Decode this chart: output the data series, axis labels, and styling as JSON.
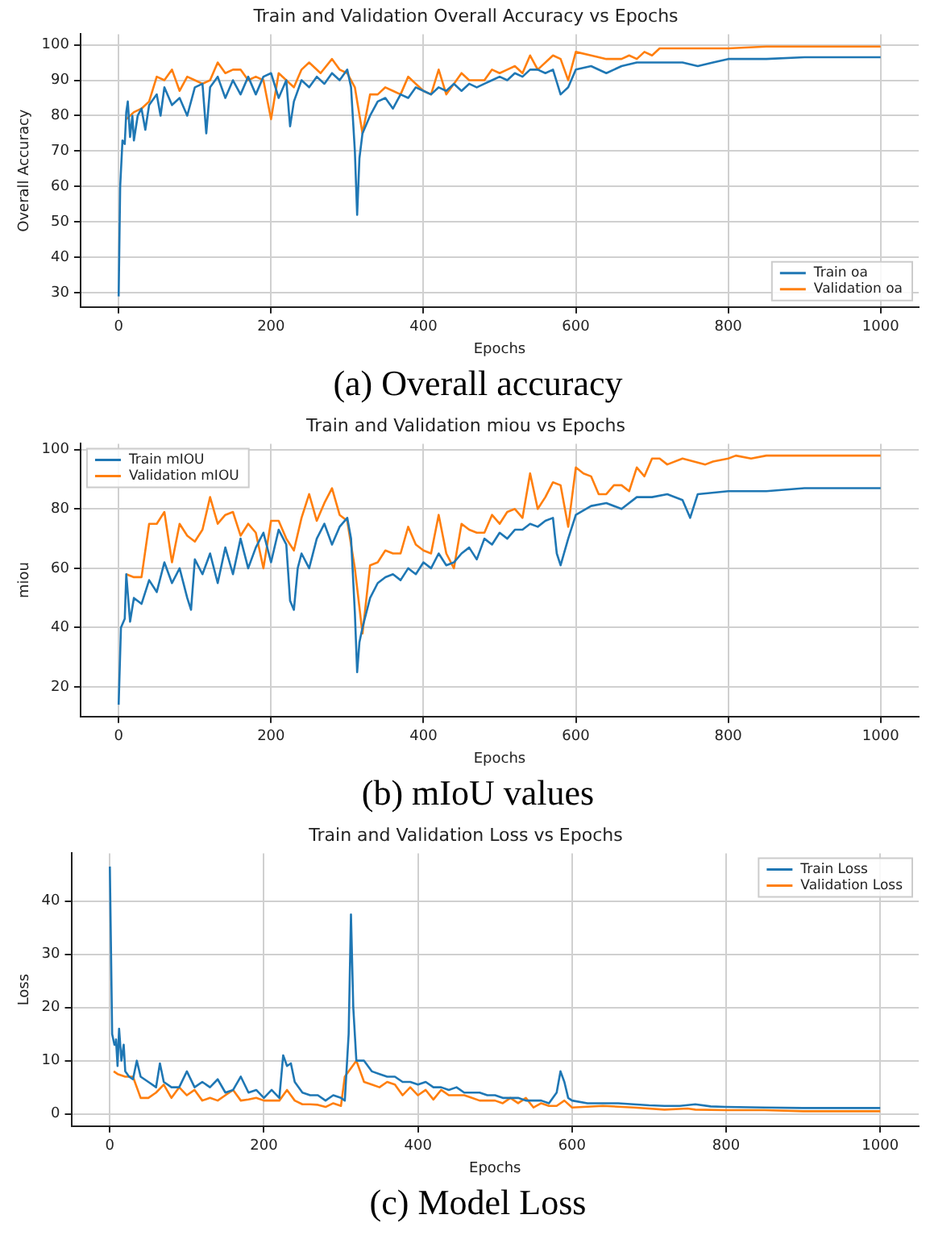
{
  "chart_data": [
    {
      "type": "line",
      "title": "Train and Validation Overall Accuracy vs Epochs",
      "xlabel": "Epochs",
      "ylabel": "Overall Accuracy",
      "annotations": [
        "(a) Overall accuracy"
      ],
      "xlim": [
        -50,
        1050
      ],
      "xticks": [
        0,
        200,
        400,
        600,
        800,
        1000
      ],
      "ylim": [
        26,
        103
      ],
      "yticks": [
        30,
        40,
        50,
        60,
        70,
        80,
        90,
        100
      ],
      "grid": true,
      "legend": "bottom right",
      "series": [
        {
          "name": "Train oa",
          "color": "#1f77b4",
          "x": [
            0,
            2,
            5,
            8,
            10,
            12,
            15,
            18,
            20,
            25,
            30,
            35,
            40,
            50,
            55,
            60,
            70,
            80,
            90,
            100,
            110,
            115,
            120,
            130,
            140,
            150,
            160,
            170,
            180,
            190,
            200,
            210,
            220,
            225,
            230,
            240,
            250,
            260,
            270,
            280,
            290,
            300,
            305,
            310,
            313,
            316,
            320,
            330,
            340,
            350,
            360,
            370,
            380,
            390,
            400,
            410,
            420,
            430,
            440,
            450,
            460,
            470,
            480,
            490,
            500,
            510,
            520,
            530,
            540,
            550,
            560,
            570,
            580,
            590,
            600,
            620,
            640,
            660,
            680,
            700,
            720,
            740,
            760,
            780,
            800,
            850,
            900,
            950,
            1000
          ],
          "values": [
            29,
            60,
            73,
            72,
            81,
            84,
            74,
            80,
            73,
            80,
            82,
            76,
            83,
            86,
            80,
            88,
            83,
            85,
            80,
            88,
            89,
            75,
            88,
            91,
            85,
            90,
            86,
            91,
            86,
            91,
            92,
            85,
            90,
            77,
            84,
            90,
            88,
            91,
            89,
            92,
            90,
            93,
            88,
            70,
            52,
            68,
            75,
            80,
            84,
            85,
            82,
            86,
            85,
            88,
            87,
            86,
            88,
            87,
            89,
            87,
            89,
            88,
            89,
            90,
            91,
            90,
            92,
            91,
            93,
            93,
            92,
            93,
            86,
            88,
            93,
            94,
            92,
            94,
            95,
            95,
            95,
            95,
            94,
            95,
            96,
            96,
            96.5,
            96.5,
            96.5
          ]
        },
        {
          "name": "Validation oa",
          "color": "#ff7f0e",
          "x": [
            10,
            20,
            30,
            40,
            50,
            60,
            70,
            80,
            90,
            100,
            110,
            120,
            130,
            140,
            150,
            160,
            170,
            180,
            190,
            200,
            210,
            220,
            230,
            240,
            250,
            265,
            280,
            290,
            300,
            310,
            320,
            330,
            340,
            350,
            360,
            370,
            380,
            390,
            400,
            410,
            420,
            430,
            440,
            450,
            460,
            470,
            480,
            490,
            500,
            510,
            520,
            530,
            540,
            550,
            570,
            580,
            590,
            600,
            620,
            640,
            660,
            670,
            680,
            690,
            700,
            710,
            760,
            800,
            850,
            1000
          ],
          "values": [
            79,
            81,
            82,
            84,
            91,
            90,
            93,
            87,
            91,
            90,
            89,
            90,
            95,
            92,
            93,
            93,
            90,
            91,
            90,
            79,
            92,
            90,
            88,
            93,
            95,
            92,
            96,
            93,
            92,
            88,
            75,
            86,
            86,
            88,
            87,
            86,
            91,
            89,
            87,
            86,
            93,
            86,
            89,
            92,
            90,
            90,
            90,
            93,
            92,
            93,
            94,
            92,
            97,
            93,
            97,
            96,
            90,
            98,
            97,
            96,
            96,
            97,
            96,
            98,
            97,
            99,
            99,
            99,
            99.5,
            99.5
          ]
        }
      ]
    },
    {
      "type": "line",
      "title": "Train and Validation miou vs Epochs",
      "xlabel": "Epochs",
      "ylabel": "miou",
      "annotations": [
        "(b) mIoU values"
      ],
      "xlim": [
        -50,
        1050
      ],
      "xticks": [
        0,
        200,
        400,
        600,
        800,
        1000
      ],
      "ylim": [
        10,
        102
      ],
      "yticks": [
        20,
        40,
        60,
        80,
        100
      ],
      "grid": true,
      "legend": "top left",
      "series": [
        {
          "name": "Train mIOU",
          "color": "#1f77b4",
          "x": [
            0,
            3,
            8,
            10,
            15,
            20,
            30,
            40,
            50,
            60,
            70,
            80,
            90,
            95,
            100,
            110,
            120,
            130,
            140,
            150,
            160,
            170,
            180,
            190,
            200,
            210,
            220,
            225,
            230,
            235,
            240,
            250,
            260,
            270,
            280,
            290,
            300,
            305,
            310,
            313,
            316,
            320,
            330,
            340,
            350,
            360,
            370,
            380,
            390,
            400,
            410,
            420,
            430,
            440,
            450,
            460,
            470,
            480,
            490,
            500,
            510,
            520,
            530,
            540,
            550,
            560,
            570,
            575,
            580,
            590,
            600,
            620,
            640,
            660,
            680,
            700,
            720,
            740,
            750,
            760,
            800,
            850,
            900,
            950,
            1000
          ],
          "values": [
            14,
            40,
            43,
            58,
            42,
            50,
            48,
            56,
            52,
            62,
            55,
            60,
            50,
            46,
            63,
            58,
            65,
            55,
            67,
            58,
            70,
            60,
            67,
            72,
            62,
            73,
            68,
            49,
            46,
            60,
            65,
            60,
            70,
            75,
            68,
            74,
            77,
            70,
            45,
            25,
            35,
            40,
            50,
            55,
            57,
            58,
            56,
            60,
            58,
            62,
            60,
            65,
            61,
            62,
            65,
            67,
            63,
            70,
            68,
            72,
            70,
            73,
            73,
            75,
            74,
            76,
            77,
            65,
            61,
            70,
            78,
            81,
            82,
            80,
            84,
            84,
            85,
            83,
            77,
            85,
            86,
            86,
            87,
            87,
            87
          ]
        },
        {
          "name": "Validation mIOU",
          "color": "#ff7f0e",
          "x": [
            10,
            20,
            30,
            40,
            50,
            60,
            70,
            80,
            90,
            100,
            110,
            120,
            130,
            140,
            150,
            160,
            170,
            180,
            190,
            200,
            210,
            220,
            230,
            240,
            250,
            260,
            270,
            280,
            290,
            300,
            310,
            320,
            330,
            340,
            350,
            360,
            370,
            380,
            390,
            400,
            410,
            420,
            430,
            440,
            450,
            460,
            470,
            480,
            490,
            500,
            510,
            520,
            530,
            540,
            550,
            560,
            570,
            580,
            590,
            600,
            610,
            620,
            630,
            640,
            650,
            660,
            670,
            680,
            690,
            700,
            710,
            720,
            740,
            770,
            780,
            800,
            810,
            830,
            850,
            900,
            1000
          ],
          "values": [
            58,
            57,
            57,
            75,
            75,
            79,
            62,
            75,
            71,
            69,
            73,
            84,
            75,
            78,
            79,
            71,
            75,
            72,
            60,
            76,
            76,
            70,
            66,
            77,
            85,
            76,
            82,
            87,
            78,
            76,
            60,
            38,
            61,
            62,
            66,
            65,
            65,
            74,
            68,
            66,
            65,
            78,
            65,
            60,
            75,
            73,
            72,
            72,
            78,
            75,
            79,
            80,
            77,
            92,
            80,
            84,
            89,
            88,
            74,
            94,
            92,
            91,
            85,
            85,
            88,
            88,
            86,
            94,
            91,
            97,
            97,
            95,
            97,
            95,
            96,
            97,
            98,
            97,
            98,
            98,
            98
          ]
        }
      ]
    },
    {
      "type": "line",
      "title": "Train and Validation Loss vs Epochs",
      "xlabel": "Epochs",
      "ylabel": "Loss",
      "annotations": [
        "(c) Model Loss"
      ],
      "xlim": [
        -50,
        1050
      ],
      "xticks": [
        0,
        200,
        400,
        600,
        800,
        1000
      ],
      "ylim": [
        -2.3,
        49
      ],
      "yticks": [
        0,
        10,
        20,
        30,
        40
      ],
      "grid": true,
      "legend": "top right",
      "series": [
        {
          "name": "Train Loss",
          "color": "#1f77b4",
          "x": [
            0,
            3,
            6,
            8,
            10,
            12,
            15,
            18,
            20,
            25,
            30,
            35,
            40,
            50,
            60,
            65,
            70,
            80,
            90,
            100,
            110,
            120,
            130,
            140,
            150,
            160,
            170,
            180,
            190,
            200,
            210,
            220,
            225,
            230,
            235,
            240,
            250,
            260,
            270,
            280,
            290,
            300,
            305,
            310,
            313,
            316,
            320,
            330,
            340,
            350,
            360,
            370,
            380,
            390,
            400,
            410,
            420,
            430,
            440,
            450,
            460,
            470,
            480,
            490,
            500,
            510,
            520,
            530,
            540,
            550,
            560,
            570,
            580,
            585,
            590,
            595,
            600,
            620,
            640,
            660,
            680,
            700,
            720,
            740,
            760,
            780,
            800,
            850,
            900,
            950,
            1000
          ],
          "values": [
            46.5,
            15,
            13,
            14,
            9,
            16,
            10,
            13,
            8,
            7,
            6.5,
            10,
            7,
            6,
            5,
            9.5,
            6,
            5,
            5,
            8,
            5,
            6,
            5,
            6.5,
            4,
            4.5,
            7,
            4,
            4.5,
            3,
            4.5,
            3,
            11,
            9,
            9.5,
            6,
            4,
            3.5,
            3.5,
            2.5,
            3.5,
            3,
            2.5,
            15,
            37.5,
            20,
            10,
            10,
            8,
            7.5,
            7,
            7,
            6,
            6,
            5.5,
            6,
            5,
            5,
            4.5,
            5,
            4,
            4,
            4,
            3.5,
            3.5,
            3,
            3,
            3,
            2.5,
            2.5,
            2.5,
            2,
            4,
            8,
            6,
            3,
            2.5,
            2,
            2,
            2,
            1.8,
            1.6,
            1.5,
            1.5,
            1.8,
            1.4,
            1.3,
            1.2,
            1.1,
            1.1,
            1.1
          ]
        },
        {
          "name": "Validation Loss",
          "color": "#ff7f0e",
          "x": [
            5,
            10,
            20,
            30,
            40,
            50,
            60,
            70,
            80,
            90,
            100,
            110,
            120,
            130,
            140,
            150,
            160,
            170,
            180,
            190,
            200,
            210,
            220,
            230,
            240,
            250,
            260,
            270,
            280,
            290,
            300,
            305,
            320,
            330,
            340,
            350,
            360,
            370,
            380,
            390,
            400,
            410,
            420,
            430,
            440,
            450,
            460,
            470,
            480,
            490,
            500,
            510,
            520,
            530,
            540,
            550,
            560,
            570,
            580,
            590,
            600,
            640,
            680,
            720,
            750,
            760,
            800,
            850,
            900,
            950,
            1000
          ],
          "values": [
            8,
            7.5,
            7,
            7,
            3,
            3,
            4,
            5.5,
            3,
            5,
            3.5,
            4.5,
            2.5,
            3,
            2.5,
            3.5,
            4.5,
            2.5,
            2.7,
            3,
            2.5,
            2.5,
            2.5,
            4.5,
            2.5,
            1.8,
            1.8,
            1.7,
            1.3,
            2,
            1.5,
            7,
            10,
            6,
            5.5,
            5,
            6,
            5.5,
            3.5,
            5,
            3.5,
            4.5,
            2.7,
            4.5,
            3.5,
            3.5,
            3.5,
            3,
            2.5,
            2.5,
            2.5,
            2,
            3,
            2,
            3,
            1.2,
            2,
            1.5,
            1.5,
            2.5,
            1.2,
            1.5,
            1.2,
            0.8,
            1,
            0.8,
            0.7,
            0.7,
            0.5,
            0.5,
            0.5
          ]
        }
      ]
    }
  ]
}
